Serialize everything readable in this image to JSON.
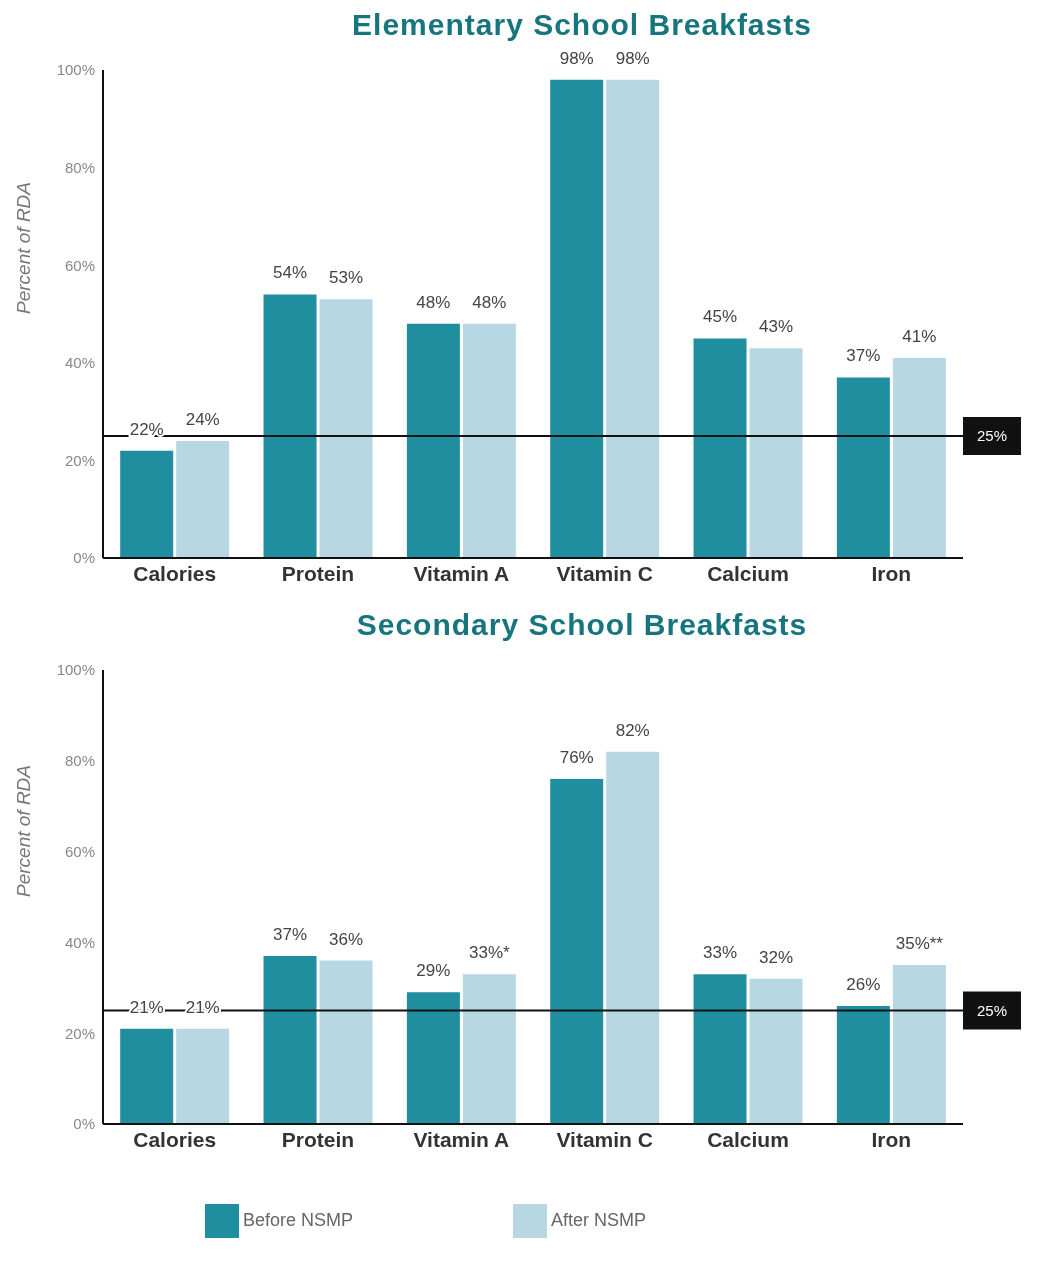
{
  "chart_data": [
    {
      "type": "bar",
      "title": "Elementary School Breakfasts",
      "ylabel": "Percent of RDA",
      "categories": [
        "Calories",
        "Protein",
        "Vitamin A",
        "Vitamin C",
        "Calcium",
        "Iron"
      ],
      "series": [
        {
          "color": "#1f8e9e",
          "values": [
            22,
            54,
            48,
            98,
            45,
            37
          ],
          "value_labels": [
            "22%",
            "54%",
            "48%",
            "98%",
            "45%",
            "37%"
          ]
        },
        {
          "color": "#b7d7e3",
          "values": [
            24,
            53,
            48,
            98,
            43,
            41
          ],
          "value_labels": [
            "24%",
            "53%",
            "48%",
            "98%",
            "43%",
            "41%"
          ]
        }
      ],
      "ylim": [
        0,
        100
      ],
      "yticks": [
        {
          "value": 0,
          "label": "0%"
        },
        {
          "value": 20,
          "label": "20%"
        },
        {
          "value": 40,
          "label": "40%"
        },
        {
          "value": 60,
          "label": "60%"
        },
        {
          "value": 80,
          "label": "80%"
        },
        {
          "value": 100,
          "label": "100%"
        }
      ],
      "ref_lines": [
        {
          "axis": "y",
          "value": 25,
          "label": "25%",
          "color": "#111111"
        }
      ],
      "grid": false
    },
    {
      "type": "bar",
      "title": "Secondary School Breakfasts",
      "ylabel": "Percent of RDA",
      "categories": [
        "Calories",
        "Protein",
        "Vitamin A",
        "Vitamin C",
        "Calcium",
        "Iron"
      ],
      "series": [
        {
          "name": "Before NSMP",
          "color": "#1f8e9e",
          "values": [
            21,
            37,
            29,
            76,
            33,
            26
          ],
          "value_labels": [
            "21%",
            "37%",
            "29%",
            "76%",
            "33%",
            "26%"
          ]
        },
        {
          "name": "After NSMP",
          "color": "#b7d7e3",
          "values": [
            21,
            36,
            33,
            82,
            32,
            35
          ],
          "value_labels": [
            "21%",
            "36%",
            "33%*",
            "82%",
            "32%",
            "35%**"
          ]
        }
      ],
      "ylim": [
        0,
        100
      ],
      "yticks": [
        {
          "value": 0,
          "label": "0%"
        },
        {
          "value": 20,
          "label": "20%"
        },
        {
          "value": 40,
          "label": "40%"
        },
        {
          "value": 60,
          "label": "60%"
        },
        {
          "value": 80,
          "label": "80%"
        },
        {
          "value": 100,
          "label": "100%"
        }
      ],
      "ref_lines": [
        {
          "axis": "y",
          "value": 25,
          "label": "25%",
          "color": "#111111"
        }
      ],
      "grid": false,
      "legend": "bottom"
    }
  ]
}
